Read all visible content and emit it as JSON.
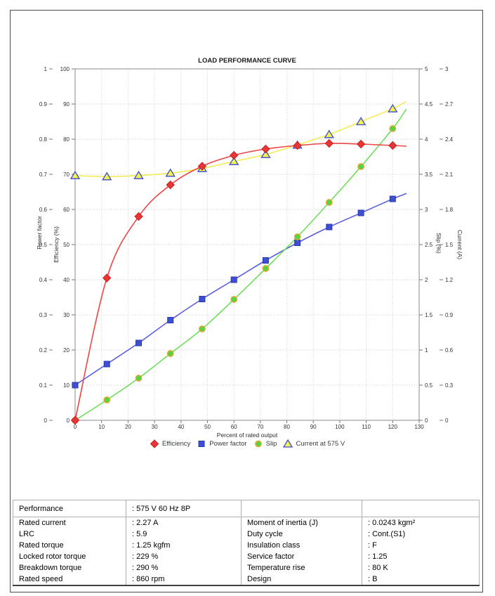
{
  "chart_data": {
    "type": "line",
    "title": "LOAD PERFORMANCE CURVE",
    "xlabel": "Percent of rated output",
    "grid": "dotted",
    "x_axis": {
      "min": 0,
      "max": 130,
      "ticks": [
        "0",
        "10",
        "20",
        "30",
        "40",
        "50",
        "60",
        "70",
        "80",
        "90",
        "100",
        "110",
        "120",
        "130"
      ]
    },
    "axes": [
      {
        "id": "power_factor",
        "label": "Power factor",
        "side": "left-outer",
        "min": 0,
        "max": 1,
        "ticks": [
          "0",
          "0.1",
          "0.2",
          "0.3",
          "0.4",
          "0.5",
          "0.6",
          "0.7",
          "0.8",
          "0.9",
          "1"
        ]
      },
      {
        "id": "efficiency",
        "label": "Efficiency (%)",
        "side": "left-inner",
        "min": 0,
        "max": 100,
        "ticks": [
          "0",
          "10",
          "20",
          "30",
          "40",
          "50",
          "60",
          "70",
          "80",
          "90",
          "100"
        ]
      },
      {
        "id": "slip",
        "label": "Slip (%)",
        "side": "right-inner",
        "min": 0,
        "max": 5,
        "ticks": [
          "0",
          "0.5",
          "1",
          "1.5",
          "2",
          "2.5",
          "3",
          "3.5",
          "4",
          "4.5",
          "5"
        ]
      },
      {
        "id": "current",
        "label": "Current (A)",
        "side": "right-outer",
        "min": 0,
        "max": 3,
        "ticks": [
          "0",
          "0.3",
          "0.6",
          "0.9",
          "1.2",
          "1.5",
          "1.8",
          "2.1",
          "2.4",
          "2.7",
          "3"
        ]
      }
    ],
    "x_points": [
      0,
      12,
      24,
      36,
      48,
      60,
      72,
      84,
      96,
      108,
      120
    ],
    "series": [
      {
        "name": "Current at 575 V",
        "axis": "current",
        "marker": "triangle",
        "line_color": "#f0ec55",
        "marker_fill": "#f4f056",
        "marker_edge": "#3b4ccc",
        "values": [
          2.09,
          2.08,
          2.09,
          2.11,
          2.15,
          2.21,
          2.27,
          2.35,
          2.44,
          2.55,
          2.66
        ],
        "line_end": {
          "x": 125,
          "value": 2.72
        }
      },
      {
        "name": "Power factor",
        "axis": "power_factor",
        "marker": "square",
        "line_color": "#5a5fdd",
        "marker_fill": "#3d4fd2",
        "marker_edge": "#2a38a8",
        "values": [
          0.1,
          0.16,
          0.22,
          0.285,
          0.345,
          0.4,
          0.455,
          0.505,
          0.55,
          0.59,
          0.63
        ],
        "line_end": {
          "x": 125,
          "value": 0.645
        }
      },
      {
        "name": "Slip",
        "axis": "slip",
        "marker": "circle",
        "line_color": "#6ede5c",
        "marker_fill": "#53d545",
        "marker_edge": "#eda42e",
        "values": [
          0,
          0.29,
          0.6,
          0.95,
          1.3,
          1.72,
          2.16,
          2.61,
          3.1,
          3.61,
          4.15
        ],
        "line_end": {
          "x": 125,
          "value": 4.42
        }
      },
      {
        "name": "Efficiency",
        "axis": "efficiency",
        "marker": "diamond",
        "line_color": "#ee4444",
        "marker_fill": "#e83535",
        "marker_edge": "#c42222",
        "values": [
          0,
          40.5,
          58,
          67,
          72.3,
          75.4,
          77.2,
          78.2,
          78.8,
          78.6,
          78.2
        ],
        "line_end": {
          "x": 125,
          "value": 78.0
        }
      }
    ],
    "legend": {
      "position": "bottom",
      "order": [
        "Efficiency",
        "Power factor",
        "Slip",
        "Current at 575 V"
      ]
    }
  },
  "specs": {
    "header": {
      "label": "Performance",
      "value": ": 575 V 60 Hz 8P"
    },
    "rows": [
      {
        "l1": "Rated current",
        "v1": ": 2.27 A",
        "l2": "Moment of inertia (J)",
        "v2": ": 0.0243 kgm²"
      },
      {
        "l1": "LRC",
        "v1": ": 5.9",
        "l2": "Duty cycle",
        "v2": ": Cont.(S1)"
      },
      {
        "l1": "Rated torque",
        "v1": ": 1.25 kgfm",
        "l2": "Insulation class",
        "v2": ": F"
      },
      {
        "l1": "Locked rotor torque",
        "v1": ": 229 %",
        "l2": "Service factor",
        "v2": ": 1.25"
      },
      {
        "l1": "Breakdown torque",
        "v1": ": 290 %",
        "l2": "Temperature rise",
        "v2": ": 80 K"
      },
      {
        "l1": "Rated speed",
        "v1": ": 860 rpm",
        "l2": "Design",
        "v2": ": B"
      }
    ]
  }
}
